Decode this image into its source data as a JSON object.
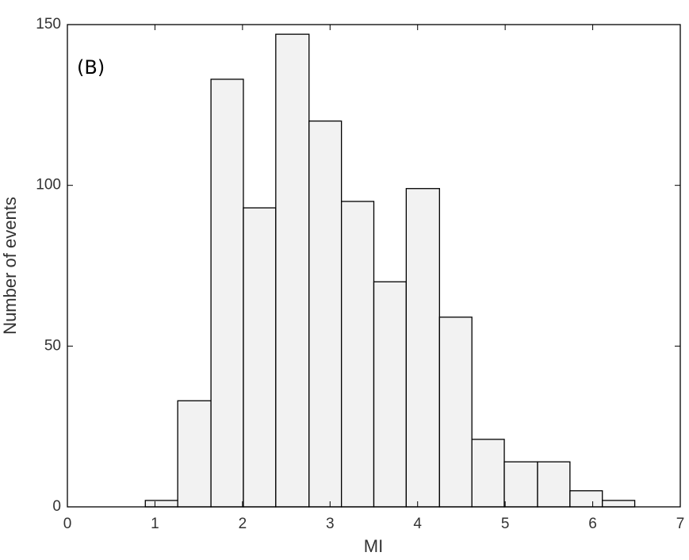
{
  "chart_data": {
    "type": "histogram",
    "annotation": "(B)",
    "xlabel": "MI",
    "ylabel": "Number of events",
    "bins": [
      0.89,
      1.26,
      1.64,
      2.01,
      2.38,
      2.76,
      3.13,
      3.5,
      3.87,
      4.25,
      4.62,
      4.99,
      5.37,
      5.74,
      6.11,
      6.48
    ],
    "values": [
      2,
      33,
      133,
      93,
      147,
      120,
      95,
      70,
      99,
      59,
      21,
      14,
      14,
      5,
      2
    ],
    "color": "#f2f2f2",
    "xlim": [
      0,
      7
    ],
    "xticks": [
      0,
      1,
      2,
      3,
      4,
      5,
      6,
      7
    ],
    "ylim": [
      0,
      150
    ],
    "yticks": [
      0,
      50,
      100,
      150
    ]
  }
}
